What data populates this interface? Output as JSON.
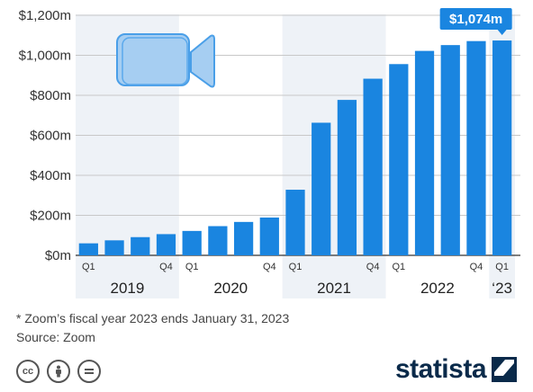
{
  "chart_data": {
    "type": "bar",
    "title": "",
    "xlabel": "",
    "ylabel": "",
    "ylim": [
      0,
      1200
    ],
    "y_ticks": [
      "$0m",
      "$200m",
      "$400m",
      "$600m",
      "$800m",
      "$1,000m",
      "$1,200m"
    ],
    "y_tick_values": [
      0,
      200,
      400,
      600,
      800,
      1000,
      1200
    ],
    "grid": true,
    "bar_color": "#1a85e0",
    "band_color": "#eef2f7",
    "categories": [
      "Q1 2019",
      "Q2 2019",
      "Q3 2019",
      "Q4 2019",
      "Q1 2020",
      "Q2 2020",
      "Q3 2020",
      "Q4 2020",
      "Q1 2021",
      "Q2 2021",
      "Q3 2021",
      "Q4 2021",
      "Q1 2022",
      "Q2 2022",
      "Q3 2022",
      "Q4 2022",
      "Q1 2023"
    ],
    "values": [
      60,
      75,
      91,
      106,
      122,
      146,
      167,
      189,
      328,
      663,
      777,
      883,
      956,
      1022,
      1051,
      1071,
      1074
    ],
    "quarter_labels": [
      {
        "index": 0,
        "text": "Q1"
      },
      {
        "index": 3,
        "text": "Q4"
      },
      {
        "index": 4,
        "text": "Q1"
      },
      {
        "index": 7,
        "text": "Q4"
      },
      {
        "index": 8,
        "text": "Q1"
      },
      {
        "index": 11,
        "text": "Q4"
      },
      {
        "index": 12,
        "text": "Q1"
      },
      {
        "index": 15,
        "text": "Q4"
      },
      {
        "index": 16,
        "text": "Q1"
      }
    ],
    "year_groups": [
      {
        "label": "2019",
        "start": 0,
        "end": 3,
        "shaded": true
      },
      {
        "label": "2020",
        "start": 4,
        "end": 7,
        "shaded": false
      },
      {
        "label": "2021",
        "start": 8,
        "end": 11,
        "shaded": true
      },
      {
        "label": "2022",
        "start": 12,
        "end": 15,
        "shaded": false
      },
      {
        "label": "‘23",
        "start": 16,
        "end": 16,
        "shaded": true
      }
    ],
    "annotation": {
      "index": 16,
      "text": "$1,074m"
    }
  },
  "footnote": "* Zoom’s fiscal year 2023 ends January 31, 2023",
  "source": "Source: Zoom",
  "brand": "statista",
  "icons": [
    "video-camera-icon",
    "creative-commons-icon",
    "attribution-icon",
    "no-derivatives-icon",
    "statista-logo-icon"
  ]
}
